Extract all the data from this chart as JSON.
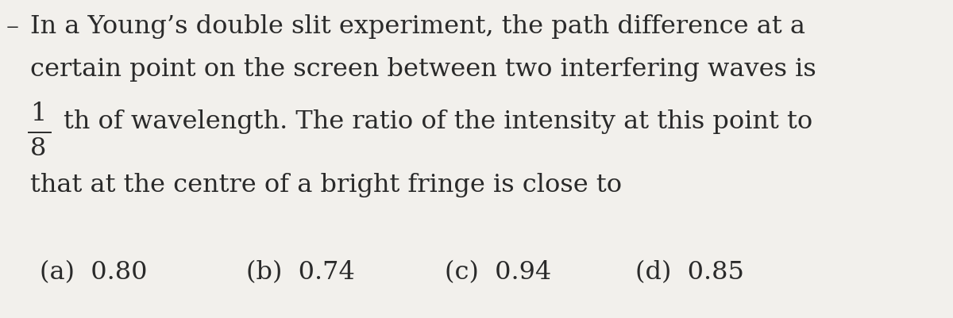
{
  "background_color": "#f2f0ec",
  "bullet": "–",
  "line1": "In a Young’s double slit experiment, the path difference at a",
  "line2": "certain point on the screen between two interfering waves is",
  "frac_num": "1",
  "frac_den": "8",
  "line3_suffix": "th of wavelength. The ratio of the intensity at this point to",
  "line4": "that at the centre of a bright fringe is close to",
  "options": [
    "(a)  0.80",
    "(b)  0.74",
    "(c)  0.94",
    "(d)  0.85"
  ],
  "font_size_main": 23,
  "font_size_options": 23,
  "text_color": "#2a2a2a",
  "font_family": "DejaVu Serif",
  "fig_width": 12.0,
  "fig_height": 4.02,
  "dpi": 100
}
